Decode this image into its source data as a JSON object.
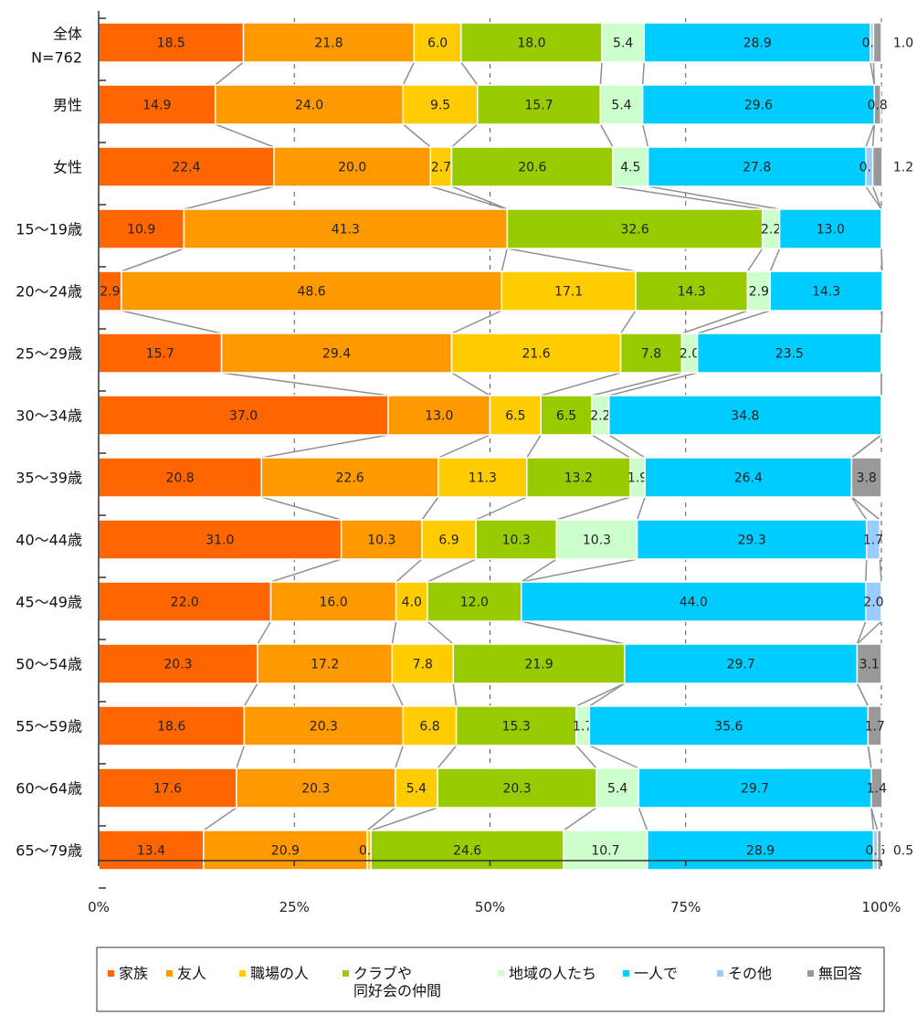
{
  "chart_data": {
    "type": "bar",
    "orientation": "horizontal",
    "stacked": true,
    "percent_stacked": true,
    "categories": [
      "全体\nN=762",
      "男性",
      "女性",
      "15～19歳",
      "20～24歳",
      "25～29歳",
      "30～34歳",
      "35～39歳",
      "40～44歳",
      "45～49歳",
      "50～54歳",
      "55～59歳",
      "60～64歳",
      "65～79歳"
    ],
    "series": [
      {
        "name": "家族",
        "color": "#ff6600",
        "values": [
          18.5,
          14.9,
          22.4,
          10.9,
          2.9,
          15.7,
          37.0,
          20.8,
          31.0,
          22.0,
          20.3,
          18.6,
          17.6,
          13.4
        ]
      },
      {
        "name": "友人",
        "color": "#ff9900",
        "values": [
          21.8,
          24.0,
          20.0,
          41.3,
          48.6,
          29.4,
          13.0,
          22.6,
          10.3,
          16.0,
          17.2,
          20.3,
          20.3,
          20.9
        ]
      },
      {
        "name": "職場の人",
        "color": "#ffcc00",
        "values": [
          6.0,
          9.5,
          2.7,
          0,
          17.1,
          21.6,
          6.5,
          11.3,
          6.9,
          4.0,
          7.8,
          6.8,
          5.4,
          0.5
        ]
      },
      {
        "name": "クラブや\n同好会の仲間",
        "color": "#99cc00",
        "values": [
          18.0,
          15.7,
          20.6,
          32.6,
          14.3,
          7.8,
          6.5,
          13.2,
          10.3,
          12.0,
          21.9,
          15.3,
          20.3,
          24.6
        ]
      },
      {
        "name": "地域の人たち",
        "color": "#ccffcc",
        "values": [
          5.4,
          5.4,
          4.5,
          2.2,
          2.9,
          2.0,
          2.2,
          1.9,
          10.3,
          0,
          0,
          1.7,
          5.4,
          10.7
        ]
      },
      {
        "name": "一人で",
        "color": "#00ccff",
        "values": [
          28.9,
          29.6,
          27.8,
          13.0,
          14.3,
          23.5,
          34.8,
          26.4,
          29.3,
          44.0,
          29.7,
          35.6,
          29.7,
          28.9
        ]
      },
      {
        "name": "その他",
        "color": "#99ccff",
        "values": [
          0.4,
          0,
          0.9,
          0,
          0,
          0,
          0,
          0,
          1.7,
          2.0,
          0,
          0,
          0,
          0.5
        ]
      },
      {
        "name": "無回答",
        "color": "#999999",
        "values": [
          1.0,
          0.8,
          1.2,
          0,
          0,
          0,
          0,
          3.8,
          0,
          0,
          3.1,
          1.7,
          1.4,
          0.5
        ]
      }
    ],
    "xlim": [
      0,
      100
    ],
    "xticks": [
      "0%",
      "25%",
      "50%",
      "75%",
      "100%"
    ],
    "grid": true,
    "gridline_style": "dashed",
    "legend_position": "bottom",
    "connector_lines": true
  }
}
